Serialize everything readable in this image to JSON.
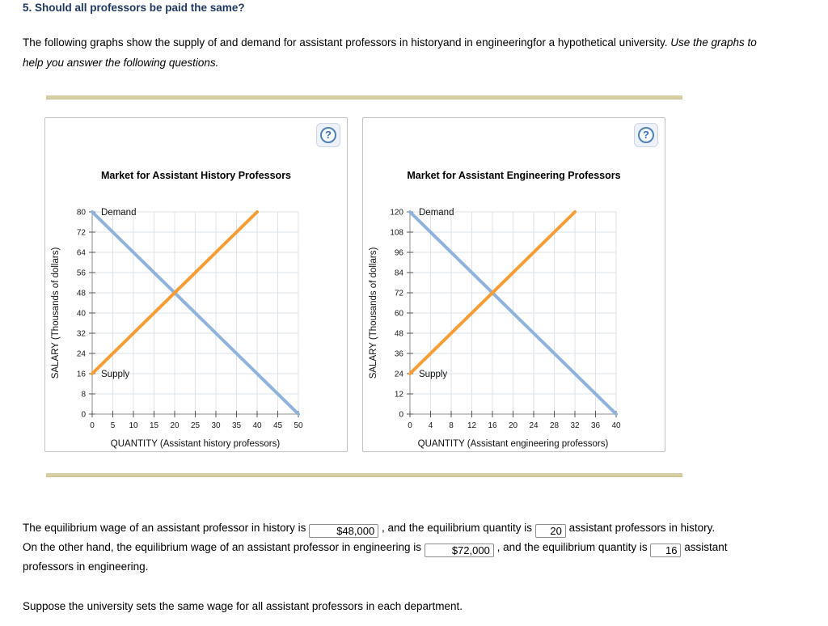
{
  "header": {
    "question_title": "5. Should all professors be paid the same?"
  },
  "intro": {
    "normal": "The following graphs show the supply of and demand for assistant professors in historyand in engineeringfor a hypothetical university.",
    "italic": "Use the graphs to help you answer the following questions."
  },
  "panels": {
    "help_icon": "?"
  },
  "chart_data": [
    {
      "type": "line",
      "title": "Market for Assistant History Professors",
      "xlabel": "QUANTITY (Assistant history professors)",
      "ylabel": "SALARY (Thousands of dollars)",
      "xlim": [
        0,
        50
      ],
      "ylim": [
        0,
        80
      ],
      "xticks": [
        0,
        5,
        10,
        15,
        20,
        25,
        30,
        35,
        40,
        45,
        50
      ],
      "yticks": [
        0,
        8,
        16,
        24,
        32,
        40,
        48,
        56,
        64,
        72,
        80
      ],
      "grid": true,
      "series": [
        {
          "name": "Demand",
          "color": "#8fb3dc",
          "points": [
            [
              0,
              80
            ],
            [
              50,
              0
            ]
          ]
        },
        {
          "name": "Supply",
          "color": "#f79d33",
          "points": [
            [
              0,
              16
            ],
            [
              40,
              80
            ]
          ]
        }
      ],
      "equilibrium": {
        "quantity": 20,
        "salary_thousands": 48
      }
    },
    {
      "type": "line",
      "title": "Market for Assistant Engineering Professors",
      "xlabel": "QUANTITY (Assistant engineering professors)",
      "ylabel": "SALARY (Thousands of dollars)",
      "xlim": [
        0,
        40
      ],
      "ylim": [
        0,
        120
      ],
      "xticks": [
        0,
        4,
        8,
        12,
        16,
        20,
        24,
        28,
        32,
        36,
        40
      ],
      "yticks": [
        0,
        12,
        24,
        36,
        48,
        60,
        72,
        84,
        96,
        108,
        120
      ],
      "grid": true,
      "series": [
        {
          "name": "Demand",
          "color": "#8fb3dc",
          "points": [
            [
              0,
              120
            ],
            [
              40,
              0
            ]
          ]
        },
        {
          "name": "Supply",
          "color": "#f79d33",
          "points": [
            [
              0,
              24
            ],
            [
              32,
              120
            ]
          ]
        }
      ],
      "equilibrium": {
        "quantity": 16,
        "salary_thousands": 72
      }
    }
  ],
  "answers": {
    "history": {
      "pre": "The equilibrium wage of an assistant professor in history is",
      "wage": "$48,000",
      "mid": ", and the equilibrium quantity is",
      "qty": "20",
      "post": "assistant professors in history."
    },
    "engineering": {
      "pre": "On the other hand, the equilibrium wage of an assistant professor in engineering is",
      "wage": "$72,000",
      "mid": ", and the equilibrium quantity is",
      "qty": "16",
      "post": "assistant",
      "cont": "professors in engineering."
    },
    "closing": "Suppose the university sets the same wage for all assistant professors in each department."
  }
}
